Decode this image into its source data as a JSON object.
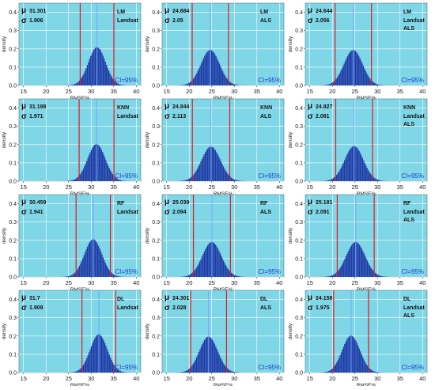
{
  "figure": {
    "colors": {
      "panel_bg": "#7fd6e6",
      "bars": "#1f3aa6",
      "ci_lines": "#e21b1b",
      "mean_line": "#6fa8ff",
      "ci_text": "#1d3fd6",
      "gridline": "#ffffff"
    }
  },
  "chart_data": [
    {
      "type": "bar",
      "model": "LM",
      "dataset": "Landsat",
      "mu_label": "31.301",
      "sigma_label": "1.906",
      "mu": 31.301,
      "sigma": 1.906,
      "ci_label": "CI=95%",
      "xlabel": "RMSE%",
      "ylabel": "density",
      "xlim": [
        14,
        41
      ],
      "ylim": [
        0,
        0.45
      ],
      "xticks": [
        15,
        20,
        25,
        30,
        35,
        40
      ],
      "yticks": [
        0.0,
        0.1,
        0.2,
        0.3,
        0.4
      ],
      "grid": true
    },
    {
      "type": "bar",
      "model": "LM",
      "dataset": "ALS",
      "mu_label": "24.684",
      "sigma_label": "2.05",
      "mu": 24.684,
      "sigma": 2.05,
      "ci_label": "CI=95%",
      "xlabel": "RMSE%",
      "ylabel": "density",
      "xlim": [
        14,
        41
      ],
      "ylim": [
        0,
        0.45
      ],
      "xticks": [
        15,
        20,
        25,
        30,
        35,
        40
      ],
      "yticks": [
        0.0,
        0.1,
        0.2,
        0.3,
        0.4
      ],
      "grid": true
    },
    {
      "type": "bar",
      "model": "LM",
      "dataset": "Landsat ALS",
      "mu_label": "24.644",
      "sigma_label": "2.056",
      "mu": 24.644,
      "sigma": 2.056,
      "ci_label": "CI=95%",
      "xlabel": "RMSE%",
      "ylabel": "density",
      "xlim": [
        14,
        41
      ],
      "ylim": [
        0,
        0.45
      ],
      "xticks": [
        15,
        20,
        25,
        30,
        35,
        40
      ],
      "yticks": [
        0.0,
        0.1,
        0.2,
        0.3,
        0.4
      ],
      "grid": true
    },
    {
      "type": "bar",
      "model": "KNN",
      "dataset": "Landsat",
      "mu_label": "31.198",
      "sigma_label": "1.971",
      "mu": 31.198,
      "sigma": 1.971,
      "ci_label": "CI=95%",
      "xlabel": "RMSE%",
      "ylabel": "density",
      "xlim": [
        14,
        41
      ],
      "ylim": [
        0,
        0.45
      ],
      "xticks": [
        15,
        20,
        25,
        30,
        35,
        40
      ],
      "yticks": [
        0.0,
        0.1,
        0.2,
        0.3,
        0.4
      ],
      "grid": true
    },
    {
      "type": "bar",
      "model": "KNN",
      "dataset": "ALS",
      "mu_label": "24.844",
      "sigma_label": "2.113",
      "mu": 24.844,
      "sigma": 2.113,
      "ci_label": "CI=95%",
      "xlabel": "RMSE%",
      "ylabel": "density",
      "xlim": [
        14,
        41
      ],
      "ylim": [
        0,
        0.45
      ],
      "xticks": [
        15,
        20,
        25,
        30,
        35,
        40
      ],
      "yticks": [
        0.0,
        0.1,
        0.2,
        0.3,
        0.4
      ],
      "grid": true
    },
    {
      "type": "bar",
      "model": "KNN",
      "dataset": "Landsat ALS",
      "mu_label": "24.827",
      "sigma_label": "2.081",
      "mu": 24.827,
      "sigma": 2.081,
      "ci_label": "CI=95%",
      "xlabel": "RMSE%",
      "ylabel": "density",
      "xlim": [
        14,
        41
      ],
      "ylim": [
        0,
        0.45
      ],
      "xticks": [
        15,
        20,
        25,
        30,
        35,
        40
      ],
      "yticks": [
        0.0,
        0.1,
        0.2,
        0.3,
        0.4
      ],
      "grid": true
    },
    {
      "type": "bar",
      "model": "RF",
      "dataset": "Landsat",
      "mu_label": "30.459",
      "sigma_label": "1.941",
      "mu": 30.459,
      "sigma": 1.941,
      "ci_label": "CI=95%",
      "xlabel": "RMSE%",
      "ylabel": "density",
      "xlim": [
        14,
        41
      ],
      "ylim": [
        0,
        0.45
      ],
      "xticks": [
        15,
        20,
        25,
        30,
        35,
        40
      ],
      "yticks": [
        0.0,
        0.1,
        0.2,
        0.3,
        0.4
      ],
      "grid": true
    },
    {
      "type": "bar",
      "model": "RF",
      "dataset": "ALS",
      "mu_label": "25.039",
      "sigma_label": "2.094",
      "mu": 25.039,
      "sigma": 2.094,
      "ci_label": "CI=95%",
      "xlabel": "RMSE%",
      "ylabel": "density",
      "xlim": [
        14,
        41
      ],
      "ylim": [
        0,
        0.45
      ],
      "xticks": [
        15,
        20,
        25,
        30,
        35,
        40
      ],
      "yticks": [
        0.0,
        0.1,
        0.2,
        0.3,
        0.4
      ],
      "grid": true
    },
    {
      "type": "bar",
      "model": "RF",
      "dataset": "Landsat ALS",
      "mu_label": "25.181",
      "sigma_label": "2.091",
      "mu": 25.181,
      "sigma": 2.091,
      "ci_label": "CI=95%",
      "xlabel": "RMSE%",
      "ylabel": "density",
      "xlim": [
        14,
        41
      ],
      "ylim": [
        0,
        0.45
      ],
      "xticks": [
        15,
        20,
        25,
        30,
        35,
        40
      ],
      "yticks": [
        0.0,
        0.1,
        0.2,
        0.3,
        0.4
      ],
      "grid": true
    },
    {
      "type": "bar",
      "model": "DL",
      "dataset": "Landsat",
      "mu_label": "31.7",
      "sigma_label": "1.909",
      "mu": 31.7,
      "sigma": 1.909,
      "ci_label": "CI=95%",
      "xlabel": "RMSE%",
      "ylabel": "density",
      "xlim": [
        14,
        41
      ],
      "ylim": [
        0,
        0.45
      ],
      "xticks": [
        15,
        20,
        25,
        30,
        35,
        40
      ],
      "yticks": [
        0.0,
        0.1,
        0.2,
        0.3,
        0.4
      ],
      "grid": true
    },
    {
      "type": "bar",
      "model": "DL",
      "dataset": "ALS",
      "mu_label": "24.301",
      "sigma_label": "2.028",
      "mu": 24.301,
      "sigma": 2.028,
      "ci_label": "CI=95%",
      "xlabel": "RMSE%",
      "ylabel": "density",
      "xlim": [
        14,
        41
      ],
      "ylim": [
        0,
        0.45
      ],
      "xticks": [
        15,
        20,
        25,
        30,
        35,
        40
      ],
      "yticks": [
        0.0,
        0.1,
        0.2,
        0.3,
        0.4
      ],
      "grid": true
    },
    {
      "type": "bar",
      "model": "DL",
      "dataset": "Landsat ALS",
      "mu_label": "24.158",
      "sigma_label": "1.975",
      "mu": 24.158,
      "sigma": 1.975,
      "ci_label": "CI=95%",
      "xlabel": "RMSE%",
      "ylabel": "density",
      "xlim": [
        14,
        41
      ],
      "ylim": [
        0,
        0.45
      ],
      "xticks": [
        15,
        20,
        25,
        30,
        35,
        40
      ],
      "yticks": [
        0.0,
        0.1,
        0.2,
        0.3,
        0.4
      ],
      "grid": true
    }
  ]
}
